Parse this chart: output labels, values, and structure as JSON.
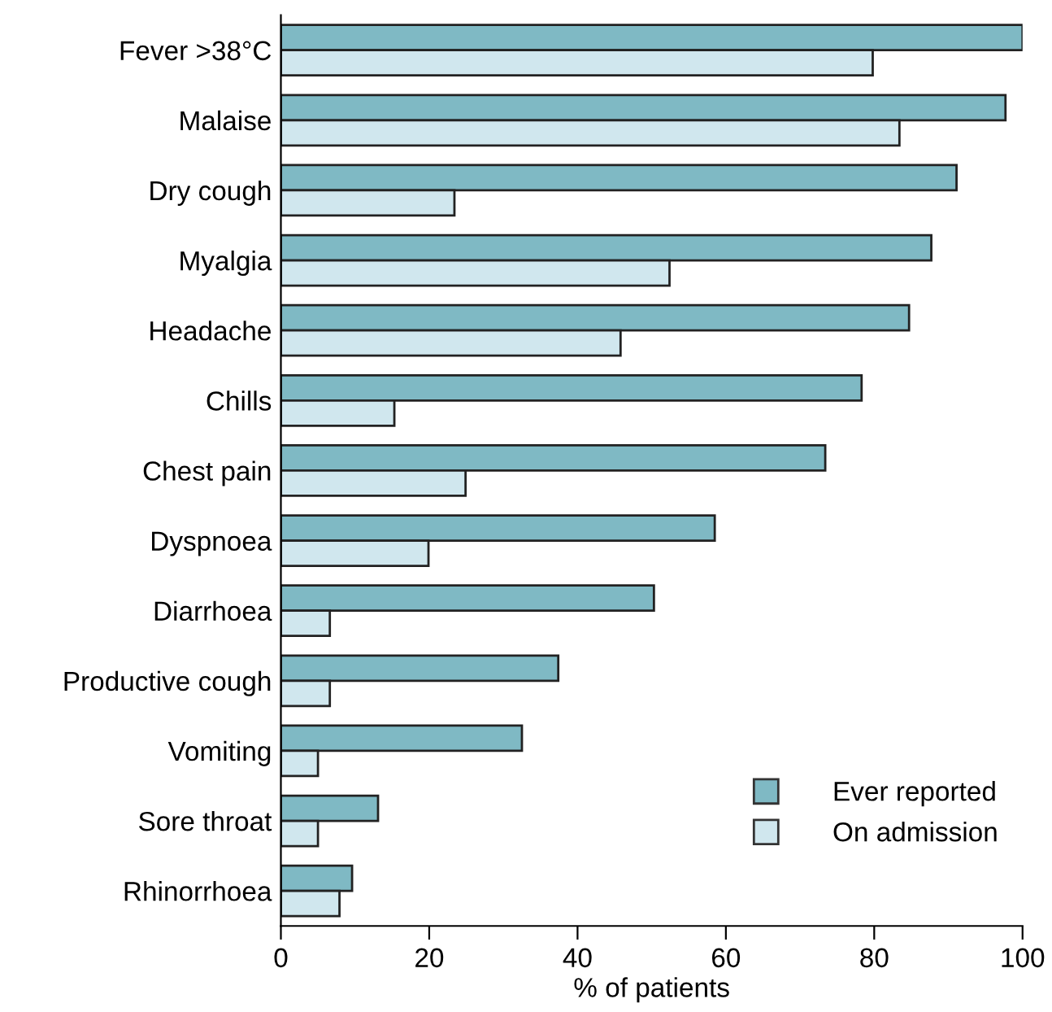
{
  "chart_data": {
    "type": "bar",
    "orientation": "horizontal",
    "xlabel": "% of patients",
    "categories": [
      "Fever >38°C",
      "Malaise",
      "Dry cough",
      "Myalgia",
      "Headache",
      "Chills",
      "Chest pain",
      "Dyspnoea",
      "Diarrhoea",
      "Productive cough",
      "Vomiting",
      "Sore throat",
      "Rhinorrhoea"
    ],
    "series": [
      {
        "name": "Ever reported",
        "color": "#7fb9c4",
        "values": [
          100,
          97.7,
          91.1,
          87.7,
          84.7,
          78.3,
          73.4,
          58.5,
          50.3,
          37.4,
          32.5,
          13.1,
          9.6
        ]
      },
      {
        "name": "On admission",
        "color": "#d0e7ee",
        "values": [
          79.8,
          83.4,
          23.4,
          52.4,
          45.8,
          15.3,
          24.9,
          19.9,
          6.6,
          6.6,
          5.0,
          5.0,
          7.9
        ]
      }
    ],
    "xlim": [
      0,
      100
    ],
    "xticks": [
      0,
      20,
      40,
      60,
      80,
      100
    ],
    "legend": "bottom right",
    "grid": false
  }
}
